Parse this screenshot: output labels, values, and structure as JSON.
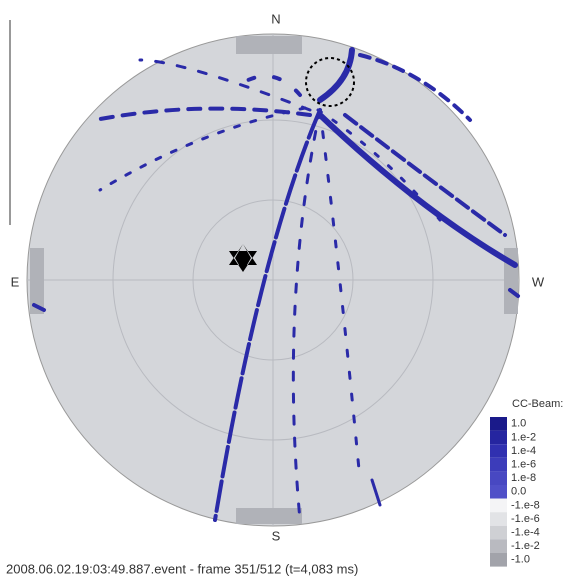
{
  "compass": {
    "north": "N",
    "south": "S",
    "east": "E",
    "west": "W"
  },
  "colorbar": {
    "title": "CC-Beam:",
    "labels": [
      "1.0",
      "1.e-2",
      "1.e-4",
      "1.e-6",
      "1.e-8",
      "0.0",
      "-1.e-8",
      "-1.e-6",
      "-1.e-4",
      "-1.e-2",
      "-1.0"
    ]
  },
  "caption": "2008.06.02.19:03:49.887.event - frame 351/512 (t=4,083 ms)"
}
